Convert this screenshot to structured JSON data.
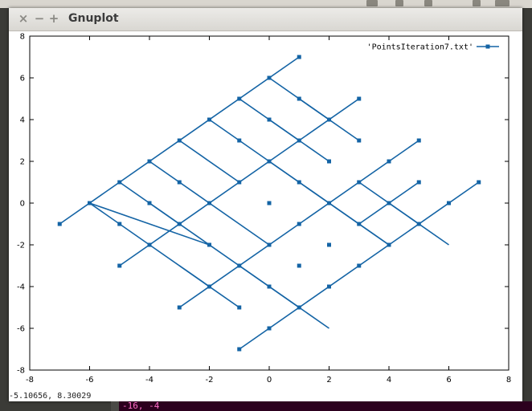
{
  "window": {
    "title": "Gnuplot",
    "close_glyph": "×",
    "minimize_glyph": "−",
    "maximize_glyph": "+"
  },
  "status": {
    "cursor_readout": "-5.10656,  8.30029"
  },
  "terminal": {
    "visible_text": "-16, -4"
  },
  "colors": {
    "series": "#1464a5",
    "titlebar": "#dedcd7"
  },
  "chart_data": {
    "type": "line",
    "title": "",
    "xlabel": "",
    "ylabel": "",
    "xlim": [
      -8,
      8
    ],
    "ylim": [
      -8,
      8
    ],
    "xticks": [
      "-8",
      "-6",
      "-4",
      "-2",
      "0",
      "2",
      "4",
      "6",
      "8"
    ],
    "yticks": [
      "-8",
      "-6",
      "-4",
      "-2",
      "0",
      "2",
      "4",
      "6",
      "8"
    ],
    "grid": false,
    "legend_position": "top-right",
    "series": [
      {
        "name": "'PointsIteration7.txt'",
        "marker": "filled-square",
        "paths": [
          [
            [
              -7,
              -1
            ],
            [
              1,
              7
            ]
          ],
          [
            [
              -5,
              -3
            ],
            [
              3,
              5
            ]
          ],
          [
            [
              -3,
              -5
            ],
            [
              5,
              3
            ]
          ],
          [
            [
              -1,
              -7
            ],
            [
              7,
              1
            ]
          ],
          [
            [
              -6,
              0
            ],
            [
              -4,
              -2
            ]
          ],
          [
            [
              -5,
              1
            ],
            [
              -3,
              -1
            ]
          ],
          [
            [
              -4,
              2
            ],
            [
              -2,
              0
            ]
          ],
          [
            [
              -3,
              3
            ],
            [
              -1,
              1
            ]
          ],
          [
            [
              -4,
              0
            ],
            [
              0,
              -4
            ]
          ],
          [
            [
              -2,
              0
            ],
            [
              0,
              -2
            ]
          ],
          [
            [
              -2,
              4
            ],
            [
              4,
              -2
            ]
          ],
          [
            [
              0,
              2
            ],
            [
              2,
              0
            ]
          ],
          [
            [
              0,
              6
            ],
            [
              2,
              4
            ]
          ],
          [
            [
              -1,
              5
            ],
            [
              1,
              3
            ]
          ],
          [
            [
              1,
              5
            ],
            [
              3,
              3
            ]
          ],
          [
            [
              0,
              4
            ],
            [
              2,
              2
            ]
          ],
          [
            [
              2,
              0
            ],
            [
              4,
              -2
            ]
          ],
          [
            [
              3,
              1
            ],
            [
              5,
              -1
            ]
          ],
          [
            [
              3,
              -1
            ],
            [
              5,
              1
            ]
          ],
          [
            [
              4,
              0
            ],
            [
              6,
              -2
            ]
          ],
          [
            [
              -4,
              -2
            ],
            [
              -2,
              -4
            ]
          ],
          [
            [
              -3,
              -3
            ],
            [
              -1,
              -5
            ]
          ],
          [
            [
              -1,
              -3
            ],
            [
              1,
              -5
            ]
          ],
          [
            [
              0,
              -4
            ],
            [
              2,
              -6
            ]
          ],
          [
            [
              -6,
              0
            ],
            [
              -2,
              -2
            ]
          ]
        ],
        "points": [
          [
            -7,
            -1
          ],
          [
            -6,
            0
          ],
          [
            -5,
            1
          ],
          [
            -4,
            2
          ],
          [
            -3,
            3
          ],
          [
            -2,
            4
          ],
          [
            -1,
            5
          ],
          [
            0,
            6
          ],
          [
            1,
            7
          ],
          [
            -5,
            -3
          ],
          [
            -4,
            -2
          ],
          [
            -3,
            -1
          ],
          [
            -2,
            0
          ],
          [
            -1,
            1
          ],
          [
            0,
            2
          ],
          [
            1,
            3
          ],
          [
            2,
            4
          ],
          [
            3,
            5
          ],
          [
            -3,
            -5
          ],
          [
            -2,
            -4
          ],
          [
            -1,
            -3
          ],
          [
            0,
            -2
          ],
          [
            1,
            -1
          ],
          [
            2,
            0
          ],
          [
            3,
            1
          ],
          [
            4,
            2
          ],
          [
            5,
            3
          ],
          [
            -1,
            -7
          ],
          [
            0,
            -6
          ],
          [
            1,
            -5
          ],
          [
            2,
            -4
          ],
          [
            3,
            -3
          ],
          [
            4,
            -2
          ],
          [
            5,
            -1
          ],
          [
            6,
            0
          ],
          [
            7,
            1
          ],
          [
            -5,
            -1
          ],
          [
            -4,
            0
          ],
          [
            -3,
            1
          ],
          [
            -1,
            3
          ],
          [
            0,
            4
          ],
          [
            1,
            5
          ],
          [
            2,
            2
          ],
          [
            3,
            3
          ],
          [
            2,
            0
          ],
          [
            0,
            -4
          ],
          [
            -1,
            -5
          ],
          [
            1,
            -3
          ],
          [
            3,
            -1
          ],
          [
            4,
            0
          ],
          [
            5,
            1
          ],
          [
            0,
            0
          ],
          [
            -2,
            -2
          ],
          [
            1,
            1
          ],
          [
            -3,
            -1
          ],
          [
            2,
            -2
          ]
        ]
      }
    ]
  }
}
